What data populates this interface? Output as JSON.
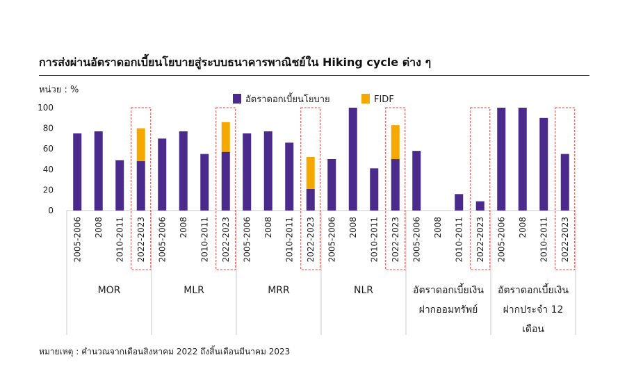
{
  "page": {
    "title": "การส่งผ่านอัตราดอกเบี้ยนโยบายสู่ระบบธนาคารพาณิชย์ใน Hiking cycle ต่าง ๆ",
    "unit_label": "หน่วย : %",
    "note": "หมายเหตุ : คำนวณจากเดือนสิงหาคม 2022 ถึงสิ้นเดือนมีนาคม 2023"
  },
  "chart_data": {
    "type": "bar",
    "stacked": true,
    "ylim": [
      0,
      100
    ],
    "yticks": [
      0,
      20,
      40,
      60,
      80,
      100
    ],
    "legend_position": "top",
    "grid": false,
    "subcategories": [
      "2005-2006",
      "2008",
      "2010-2011",
      "2022-2023"
    ],
    "highlighted_subcategory": "2022-2023",
    "groups": [
      {
        "label": "MOR",
        "values": [
          75,
          77,
          49,
          48
        ],
        "fidf": [
          null,
          null,
          null,
          32
        ]
      },
      {
        "label": "MLR",
        "values": [
          70,
          77,
          55,
          57
        ],
        "fidf": [
          null,
          null,
          null,
          29
        ]
      },
      {
        "label": "MRR",
        "values": [
          75,
          77,
          66,
          21
        ],
        "fidf": [
          null,
          null,
          null,
          31
        ]
      },
      {
        "label": "NLR",
        "values": [
          50,
          100,
          41,
          50
        ],
        "fidf": [
          null,
          null,
          null,
          33
        ]
      },
      {
        "label": "อัตราดอกเบี้ยเงินฝากออมทรัพย์",
        "label_lines": [
          "อัตราดอกเบี้ยเงิน",
          "ฝากออมทรัพย์"
        ],
        "values": [
          58,
          null,
          16,
          9
        ],
        "fidf": [
          null,
          null,
          null,
          null
        ]
      },
      {
        "label": "อัตราดอกเบี้ยเงินฝากประจำ 12 เดือน",
        "label_lines": [
          "อัตราดอกเบี้ยเงิน",
          "ฝากประจำ 12",
          "เดือน"
        ],
        "values": [
          100,
          100,
          90,
          55
        ],
        "fidf": [
          null,
          null,
          null,
          null
        ]
      }
    ],
    "series": [
      {
        "name": "อัตราดอกเบี้ยนโยบาย",
        "color": "#4a2a8a",
        "key": "values"
      },
      {
        "name": "FIDF",
        "color": "#f5a800",
        "key": "fidf"
      }
    ],
    "highlight_color": "#e0403a"
  }
}
